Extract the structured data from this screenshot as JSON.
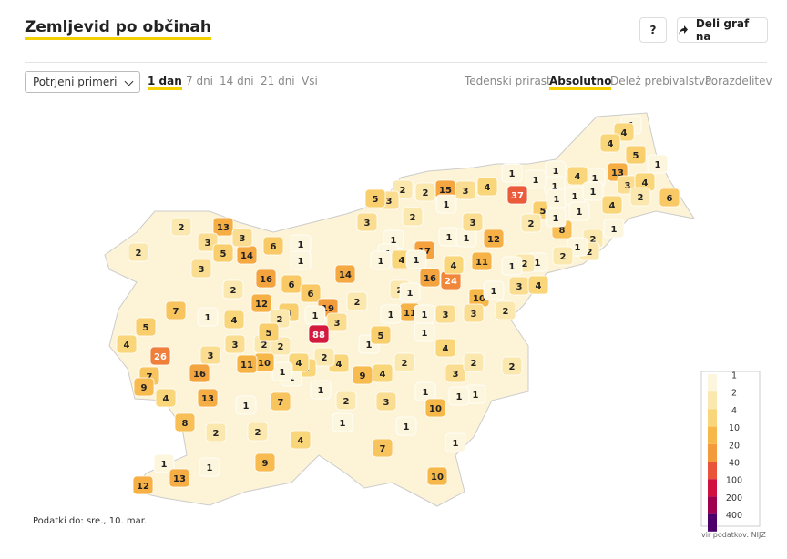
{
  "header": {
    "title": "Zemljevid po občinah",
    "help": "?",
    "share": "Deli graf na"
  },
  "controls": {
    "select": "Potrjeni primeri",
    "periods": [
      "1 dan",
      "7 dni",
      "14 dni",
      "21 dni",
      "Vsi"
    ],
    "active_period": 0,
    "modes": [
      "Tedenski prirast",
      "Absolutno",
      "Delež prebivalstva",
      "Porazdelitev"
    ],
    "active_mode": 1
  },
  "map": {
    "values": [
      1,
      4,
      4,
      5,
      1,
      13,
      1,
      4,
      1,
      1,
      1,
      1,
      37,
      4,
      5,
      1,
      1,
      1,
      3,
      4,
      2,
      6,
      4,
      1,
      8,
      2,
      1,
      1,
      2,
      2,
      1,
      2,
      1,
      2,
      1,
      12,
      11,
      1,
      1,
      3,
      15,
      2,
      1,
      3,
      2,
      3,
      5,
      2,
      3,
      17,
      16,
      24,
      4,
      1,
      1,
      4,
      1,
      1,
      2,
      1,
      11,
      1,
      3,
      10,
      3,
      1,
      3,
      4,
      2,
      2,
      13,
      3,
      2,
      5,
      14,
      3,
      6,
      1,
      1,
      14,
      3,
      2,
      16,
      6,
      6,
      19,
      2,
      12,
      5,
      1,
      3,
      7,
      1,
      4,
      2,
      88,
      5,
      4,
      26,
      3,
      2,
      2,
      5,
      1,
      5,
      1,
      1,
      4,
      4,
      2,
      9,
      4,
      2,
      4,
      1,
      4,
      1,
      10,
      11,
      3,
      7,
      9,
      16,
      13,
      4,
      1,
      7,
      1,
      2,
      3,
      1,
      10,
      3,
      2,
      2,
      1,
      1,
      1,
      1,
      2,
      2,
      8,
      4,
      1,
      7,
      9,
      1,
      1,
      13,
      12,
      10
    ],
    "legend": {
      "ticks": [
        1,
        2,
        4,
        10,
        20,
        40,
        100,
        200,
        400
      ],
      "colors": [
        "#fdf6de",
        "#fbe8ae",
        "#f9d67a",
        "#f7b84a",
        "#f39a3a",
        "#e8533a",
        "#d0103f",
        "#9e004f",
        "#4e006a"
      ]
    },
    "footnote": "Podatki do: sre., 10. mar.",
    "source": "vir podatkov: NIJZ"
  }
}
